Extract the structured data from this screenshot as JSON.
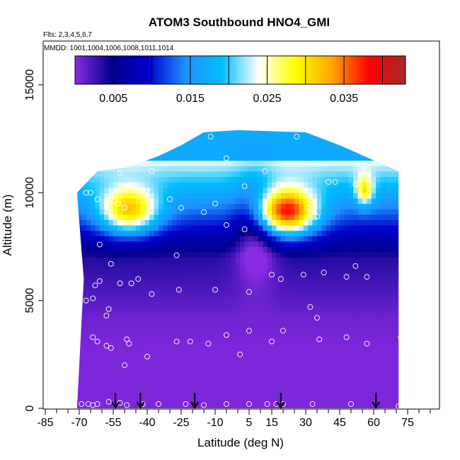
{
  "chart_data": {
    "type": "heatmap",
    "title": "ATOM3 Southbound HNO4_GMI",
    "subtitle_flights": "Flts: 2,3,4,5,6,7",
    "subtitle_dates": "MMDD: 1001,1004,1006,1008,1011,1014",
    "xlabel": "Latitude (deg N)",
    "ylabel": "Altitude (m)",
    "xlim": [
      -85,
      85
    ],
    "ylim": [
      0,
      17000
    ],
    "x_tick_labels": [
      "-85",
      "-70",
      "-55",
      "-40",
      "-25",
      "-10",
      "5",
      "15",
      "30",
      "45",
      "60",
      "75"
    ],
    "x_tick_values": [
      -85,
      -70,
      -55,
      -40,
      -25,
      -10,
      5,
      15,
      30,
      45,
      60,
      75
    ],
    "y_tick_labels": [
      "0",
      "5000",
      "10000",
      "15000"
    ],
    "y_tick_values": [
      0,
      5000,
      10000,
      15000
    ],
    "colorbar": {
      "range": [
        0,
        0.043
      ],
      "tick_labels": [
        "0.005",
        "0.015",
        "0.025",
        "0.035"
      ],
      "tick_values": [
        0.005,
        0.015,
        0.025,
        0.035
      ],
      "colors": [
        "#8a2be2",
        "#00008b",
        "#0000cd",
        "#1e90ff",
        "#00bfff",
        "#ffffff",
        "#ffff00",
        "#ffa500",
        "#ff0000",
        "#a52a2a"
      ]
    },
    "field_extent": {
      "lat_range": [
        -71,
        71
      ],
      "altitude_top": [
        {
          "lat": -71,
          "alt": 10000
        },
        {
          "lat": -62,
          "alt": 11000
        },
        {
          "lat": -48,
          "alt": 11200
        },
        {
          "lat": -35,
          "alt": 11700
        },
        {
          "lat": -25,
          "alt": 12200
        },
        {
          "lat": -15,
          "alt": 12800
        },
        {
          "lat": 0,
          "alt": 12900
        },
        {
          "lat": 30,
          "alt": 12800
        },
        {
          "lat": 45,
          "alt": 12200
        },
        {
          "lat": 60,
          "alt": 11500
        },
        {
          "lat": 71,
          "alt": 11000
        }
      ]
    },
    "features": [
      {
        "name": "southern upper-troposphere maximum",
        "lat": -48,
        "alt": 9300,
        "value": 0.032
      },
      {
        "name": "northern upper-troposphere maximum",
        "lat": 22,
        "alt": 9200,
        "value": 0.038
      },
      {
        "name": "high-latitude north maximum",
        "lat": 56,
        "alt": 10200,
        "value": 0.03
      }
    ],
    "sample_points": [
      {
        "x": -69,
        "y": 200
      },
      {
        "x": -66,
        "y": 200
      },
      {
        "x": -64,
        "y": 150
      },
      {
        "x": -62,
        "y": 200
      },
      {
        "x": -57,
        "y": 300
      },
      {
        "x": -52,
        "y": 250
      },
      {
        "x": -49,
        "y": 150
      },
      {
        "x": -42,
        "y": 200
      },
      {
        "x": -35,
        "y": 200
      },
      {
        "x": -23,
        "y": 200
      },
      {
        "x": -15,
        "y": 150
      },
      {
        "x": -5,
        "y": 200
      },
      {
        "x": 5,
        "y": 200
      },
      {
        "x": 13,
        "y": 200
      },
      {
        "x": 17,
        "y": 200
      },
      {
        "x": 20,
        "y": 200
      },
      {
        "x": 33,
        "y": 200
      },
      {
        "x": 50,
        "y": 200
      },
      {
        "x": 71,
        "y": 100
      },
      {
        "x": -64,
        "y": 3300
      },
      {
        "x": -62,
        "y": 3100
      },
      {
        "x": -58,
        "y": 2900
      },
      {
        "x": -56,
        "y": 2800
      },
      {
        "x": -49,
        "y": 3200
      },
      {
        "x": -48,
        "y": 3000
      },
      {
        "x": -50,
        "y": 2000
      },
      {
        "x": -40,
        "y": 2400
      },
      {
        "x": -27,
        "y": 3100
      },
      {
        "x": -21,
        "y": 3100
      },
      {
        "x": -13,
        "y": 3000
      },
      {
        "x": -5,
        "y": 3400
      },
      {
        "x": 1,
        "y": 2500
      },
      {
        "x": 5,
        "y": 3600
      },
      {
        "x": 15,
        "y": 3100
      },
      {
        "x": 20,
        "y": 3600
      },
      {
        "x": 36,
        "y": 3200
      },
      {
        "x": 48,
        "y": 3300
      },
      {
        "x": 57,
        "y": 3000
      },
      {
        "x": 72,
        "y": 3300
      },
      {
        "x": -67,
        "y": 5000
      },
      {
        "x": -64,
        "y": 5100
      },
      {
        "x": -63,
        "y": 5700
      },
      {
        "x": -61,
        "y": 5900
      },
      {
        "x": -58,
        "y": 4300
      },
      {
        "x": -57,
        "y": 4600
      },
      {
        "x": -52,
        "y": 5800
      },
      {
        "x": -47,
        "y": 5800
      },
      {
        "x": -44,
        "y": 6000
      },
      {
        "x": -38,
        "y": 5300
      },
      {
        "x": -26,
        "y": 5500
      },
      {
        "x": -10,
        "y": 5500
      },
      {
        "x": 5,
        "y": 5400
      },
      {
        "x": 15,
        "y": 6200
      },
      {
        "x": 19,
        "y": 6000
      },
      {
        "x": 29,
        "y": 6200
      },
      {
        "x": 32,
        "y": 4700
      },
      {
        "x": 35,
        "y": 4200
      },
      {
        "x": 38,
        "y": 6300
      },
      {
        "x": 48,
        "y": 6100
      },
      {
        "x": 52,
        "y": 6600
      },
      {
        "x": 57,
        "y": 6100
      },
      {
        "x": -61,
        "y": 7600
      },
      {
        "x": -56,
        "y": 6700
      },
      {
        "x": -27,
        "y": 7100
      },
      {
        "x": -5,
        "y": 8500
      },
      {
        "x": 3,
        "y": 8300
      },
      {
        "x": -45,
        "y": 8600
      },
      {
        "x": -72,
        "y": 9900
      },
      {
        "x": -67,
        "y": 10000
      },
      {
        "x": -65,
        "y": 10000
      },
      {
        "x": -62,
        "y": 9700
      },
      {
        "x": -57,
        "y": 9500
      },
      {
        "x": -53,
        "y": 9500
      },
      {
        "x": -50,
        "y": 9300
      },
      {
        "x": -40,
        "y": 10100
      },
      {
        "x": -30,
        "y": 9700
      },
      {
        "x": -25,
        "y": 9300
      },
      {
        "x": -15,
        "y": 9100
      },
      {
        "x": -10,
        "y": 9500
      },
      {
        "x": -52,
        "y": 10900
      },
      {
        "x": -38,
        "y": 11000
      },
      {
        "x": -12,
        "y": 12600
      },
      {
        "x": -5,
        "y": 11600
      },
      {
        "x": 3,
        "y": 10300
      },
      {
        "x": 12,
        "y": 11000
      },
      {
        "x": 18,
        "y": 10400
      },
      {
        "x": 23,
        "y": 10400
      },
      {
        "x": 26,
        "y": 12600
      },
      {
        "x": 31,
        "y": 9300
      },
      {
        "x": 35,
        "y": 8900
      },
      {
        "x": 40,
        "y": 10500
      },
      {
        "x": 43,
        "y": 10500
      },
      {
        "x": 52,
        "y": 10400
      },
      {
        "x": 58,
        "y": 10400
      },
      {
        "x": 70,
        "y": 11800
      }
    ],
    "flight_markers_lat": [
      -54,
      -43,
      -19,
      19,
      61
    ]
  }
}
